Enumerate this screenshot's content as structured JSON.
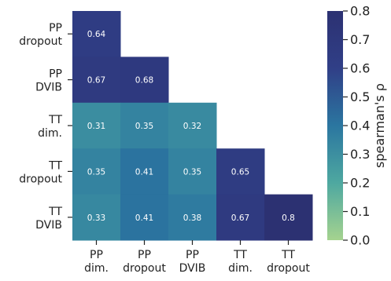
{
  "chart_data": {
    "type": "heatmap",
    "title": "",
    "row_labels": [
      [
        "PP",
        "dropout"
      ],
      [
        "PP",
        "DVIB"
      ],
      [
        "TT",
        "dim."
      ],
      [
        "TT",
        "dropout"
      ],
      [
        "TT",
        "DVIB"
      ]
    ],
    "col_labels": [
      [
        "PP",
        "dim."
      ],
      [
        "PP",
        "dropout"
      ],
      [
        "PP",
        "DVIB"
      ],
      [
        "TT",
        "dim."
      ],
      [
        "TT",
        "dropout"
      ]
    ],
    "values": [
      [
        0.64,
        null,
        null,
        null,
        null
      ],
      [
        0.67,
        0.68,
        null,
        null,
        null
      ],
      [
        0.31,
        0.35,
        0.32,
        null,
        null
      ],
      [
        0.35,
        0.41,
        0.35,
        0.65,
        null
      ],
      [
        0.33,
        0.41,
        0.38,
        0.67,
        0.8
      ]
    ],
    "value_labels": [
      [
        "0.64",
        "",
        "",
        "",
        ""
      ],
      [
        "0.67",
        "0.68",
        "",
        "",
        ""
      ],
      [
        "0.31",
        "0.35",
        "0.32",
        "",
        ""
      ],
      [
        "0.35",
        "0.41",
        "0.35",
        "0.65",
        ""
      ],
      [
        "0.33",
        "0.41",
        "0.38",
        "0.67",
        "0.8"
      ]
    ],
    "colorbar": {
      "label": "spearman's ρ",
      "range": [
        0.0,
        0.8
      ],
      "ticks": [
        "0.0",
        "0.1",
        "0.2",
        "0.3",
        "0.4",
        "0.5",
        "0.6",
        "0.7",
        "0.8"
      ],
      "colormap": "crest_r",
      "color_stops": [
        "#a5d38f",
        "#4ea8a0",
        "#2b76a0",
        "#303f87",
        "#2c3172"
      ]
    }
  }
}
